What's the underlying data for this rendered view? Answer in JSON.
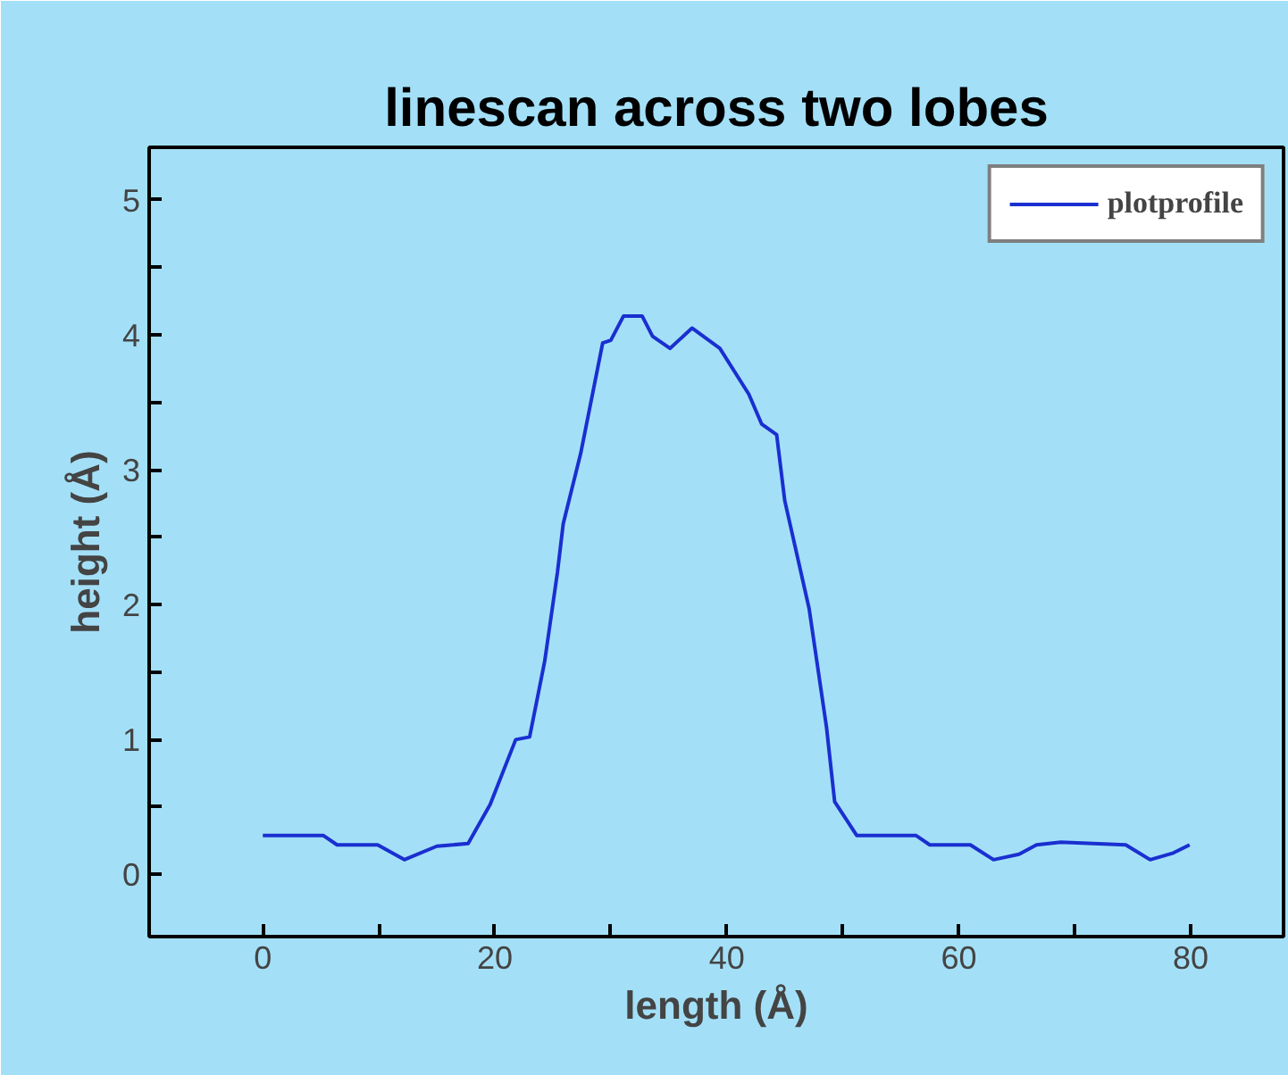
{
  "chart_data": {
    "type": "line",
    "title": "linescan across two lobes",
    "xlabel": "length (Å)",
    "ylabel": "height (Å)",
    "xlim": [
      -9.8,
      88
    ],
    "ylim": [
      -0.46,
      5.39
    ],
    "xticks": [
      0,
      {
        "value": 10,
        "label": null
      },
      20,
      {
        "value": 30,
        "label": null
      },
      40,
      {
        "value": 50,
        "label": null
      },
      60,
      {
        "value": 70,
        "label": null
      },
      80
    ],
    "yticks": [
      0,
      {
        "value": 0.5,
        "label": null
      },
      1,
      {
        "value": 1.5,
        "label": null
      },
      2,
      {
        "value": 2.5,
        "label": null
      },
      3,
      {
        "value": 3.5,
        "label": null
      },
      4,
      {
        "value": 4.5,
        "label": null
      },
      5
    ],
    "grid": false,
    "legend": "top right",
    "marker": "none",
    "line_style": "solid",
    "series": [
      {
        "name": "plotprofile",
        "color": "#1a2fd0",
        "x": [
          0,
          5.2,
          6.4,
          9.9,
          12.2,
          15.0,
          17.7,
          19.6,
          21.8,
          23.0,
          24.3,
          25.4,
          25.9,
          27.4,
          29.3,
          30.0,
          31.1,
          32.7,
          33.6,
          35.1,
          37.0,
          39.4,
          41.9,
          43.0,
          44.3,
          45.0,
          47.1,
          48.6,
          49.3,
          51.2,
          56.3,
          57.5,
          61.0,
          63.0,
          65.2,
          66.7,
          68.8,
          74.4,
          76.5,
          78.5,
          79.9
        ],
        "values": [
          0.29,
          0.29,
          0.22,
          0.22,
          0.11,
          0.21,
          0.23,
          0.52,
          1.0,
          1.02,
          1.58,
          2.24,
          2.6,
          3.12,
          3.94,
          3.96,
          4.14,
          4.14,
          3.99,
          3.9,
          4.05,
          3.9,
          3.56,
          3.34,
          3.26,
          2.77,
          1.97,
          1.09,
          0.54,
          0.29,
          0.29,
          0.22,
          0.22,
          0.11,
          0.15,
          0.22,
          0.24,
          0.22,
          0.11,
          0.16,
          0.22
        ]
      }
    ]
  }
}
